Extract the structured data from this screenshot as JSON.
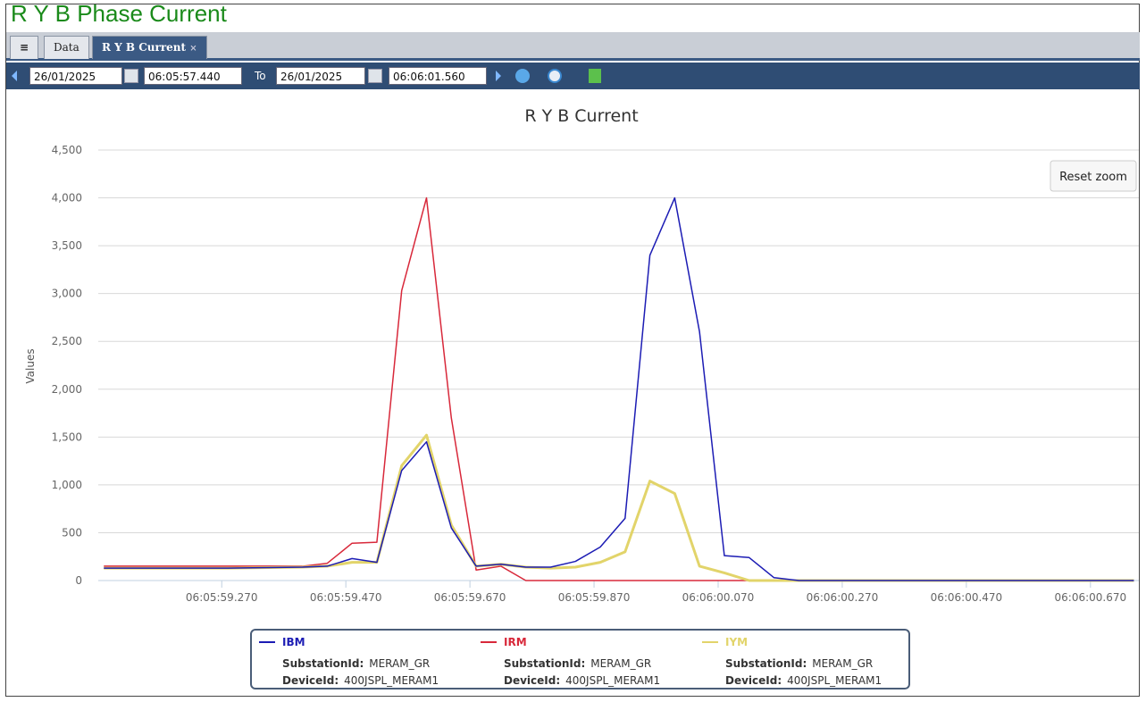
{
  "header": {
    "title": "R Y B Phase Current"
  },
  "tabs": [
    "Data",
    "R Y B Current"
  ],
  "toolbar": {
    "from_date": "26/01/2025",
    "from_time": "06:05:57.440",
    "to_label": "To",
    "to_date": "26/01/2025",
    "to_time": "06:06:01.560"
  },
  "chart_data": {
    "type": "line",
    "title": "R Y B Current",
    "y_label": "Values",
    "reset_zoom": "Reset zoom",
    "x": [
      "06:05:59.080",
      "06:05:59.280",
      "06:05:59.400",
      "06:05:59.440",
      "06:05:59.480",
      "06:05:59.520",
      "06:05:59.560",
      "06:05:59.600",
      "06:05:59.640",
      "06:05:59.680",
      "06:05:59.720",
      "06:05:59.760",
      "06:05:59.800",
      "06:05:59.840",
      "06:05:59.880",
      "06:05:59.920",
      "06:05:59.960",
      "06:06:00.000",
      "06:06:00.040",
      "06:06:00.080",
      "06:06:00.120",
      "06:06:00.160",
      "06:06:00.200",
      "06:06:00.740"
    ],
    "xlim": [
      "06:05:59.071",
      "06:06:00.748"
    ],
    "xticks": [
      "06:05:59.270",
      "06:05:59.470",
      "06:05:59.670",
      "06:05:59.870",
      "06:06:00.070",
      "06:06:00.270",
      "06:06:00.470",
      "06:06:00.670"
    ],
    "ylim": [
      0,
      4500
    ],
    "yticks": [
      0,
      500,
      {
        "value": 1000,
        "label": "1,000"
      },
      {
        "value": 1500,
        "label": "1,500"
      },
      {
        "value": 2000,
        "label": "2,000"
      },
      {
        "value": 2500,
        "label": "2,500"
      },
      {
        "value": 3000,
        "label": "3,000"
      },
      {
        "value": 3500,
        "label": "3,500"
      },
      {
        "value": 4000,
        "label": "4,000"
      },
      {
        "value": 4500,
        "label": "4,500"
      }
    ],
    "grid": true,
    "legend_fields": [
      "SubstationId:",
      "DeviceId:"
    ],
    "series": [
      {
        "name": "IBM",
        "color": "#1c1cb4",
        "substation": "MERAM_GR",
        "device": "400JSPL_MERAM1",
        "values": [
          130,
          130,
          140,
          150,
          230,
          190,
          1150,
          1450,
          550,
          150,
          170,
          140,
          140,
          200,
          350,
          650,
          3400,
          4000,
          2600,
          260,
          240,
          30,
          0,
          0
        ]
      },
      {
        "name": "IRM",
        "color": "#d8283a",
        "substation": "MERAM_GR",
        "device": "400JSPL_MERAM1",
        "values": [
          150,
          150,
          150,
          180,
          390,
          400,
          3030,
          4000,
          1700,
          110,
          150,
          0,
          0,
          0,
          0,
          0,
          0,
          0,
          0,
          0,
          0,
          0,
          0,
          0
        ]
      },
      {
        "name": "IYM",
        "color": "#e2d46a",
        "substation": "MERAM_GR",
        "device": "400JSPL_MERAM1",
        "values": [
          130,
          130,
          140,
          150,
          190,
          190,
          1200,
          1520,
          580,
          150,
          170,
          140,
          130,
          140,
          190,
          300,
          1040,
          910,
          150,
          80,
          0,
          0,
          0,
          0
        ]
      }
    ]
  }
}
